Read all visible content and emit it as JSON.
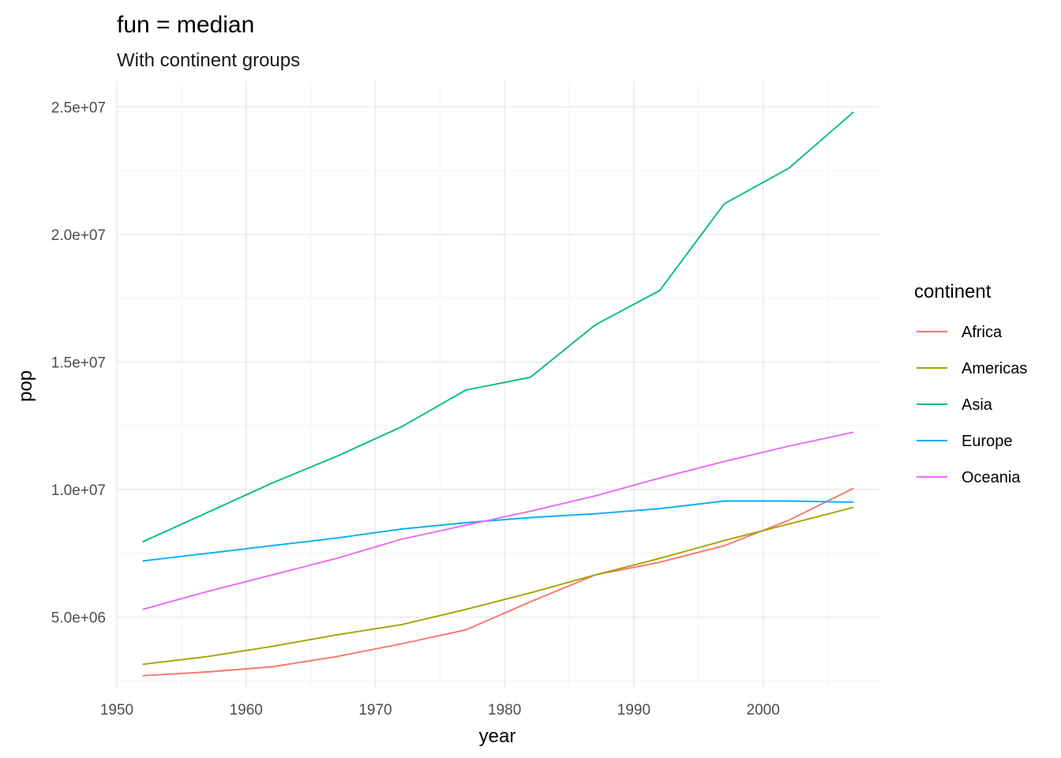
{
  "chart_data": {
    "type": "line",
    "title": "fun = median",
    "subtitle": "With continent groups",
    "xlabel": "year",
    "ylabel": "pop",
    "xlim": [
      1950,
      2009
    ],
    "ylim": [
      2200000,
      26000000
    ],
    "x_ticks": [
      1950,
      1960,
      1970,
      1980,
      1990,
      2000
    ],
    "x_tick_labels": [
      "1950",
      "1960",
      "1970",
      "1980",
      "1990",
      "2000"
    ],
    "y_ticks": [
      5000000,
      10000000,
      15000000,
      20000000,
      25000000
    ],
    "y_tick_labels": [
      "5.0e+06",
      "1.0e+07",
      "1.5e+07",
      "2.0e+07",
      "2.5e+07"
    ],
    "grid": true,
    "legend": {
      "title": "continent",
      "position": "right"
    },
    "x": [
      1952,
      1957,
      1962,
      1967,
      1972,
      1977,
      1982,
      1987,
      1992,
      1997,
      2002,
      2007
    ],
    "series": [
      {
        "name": "Africa",
        "color": "#F8766D",
        "values": [
          2700000,
          2850000,
          3050000,
          3450000,
          3950000,
          4500000,
          5600000,
          6650000,
          7150000,
          7800000,
          8800000,
          10050000
        ]
      },
      {
        "name": "Americas",
        "color": "#A3A500",
        "values": [
          3150000,
          3450000,
          3850000,
          4300000,
          4700000,
          5300000,
          5950000,
          6650000,
          7300000,
          8000000,
          8650000,
          9300000
        ]
      },
      {
        "name": "Asia",
        "color": "#00BF7D",
        "values": [
          7950000,
          9100000,
          10250000,
          11300000,
          12450000,
          13900000,
          14400000,
          16450000,
          17800000,
          21200000,
          22600000,
          24800000
        ]
      },
      {
        "name": "Europe",
        "color": "#00B0F6",
        "values": [
          7200000,
          7500000,
          7800000,
          8100000,
          8450000,
          8700000,
          8900000,
          9050000,
          9250000,
          9550000,
          9550000,
          9500000
        ]
      },
      {
        "name": "Oceania",
        "color": "#E76BF3",
        "values": [
          5300000,
          6000000,
          6650000,
          7300000,
          8050000,
          8600000,
          9150000,
          9750000,
          10450000,
          11100000,
          11700000,
          12250000
        ]
      }
    ]
  }
}
